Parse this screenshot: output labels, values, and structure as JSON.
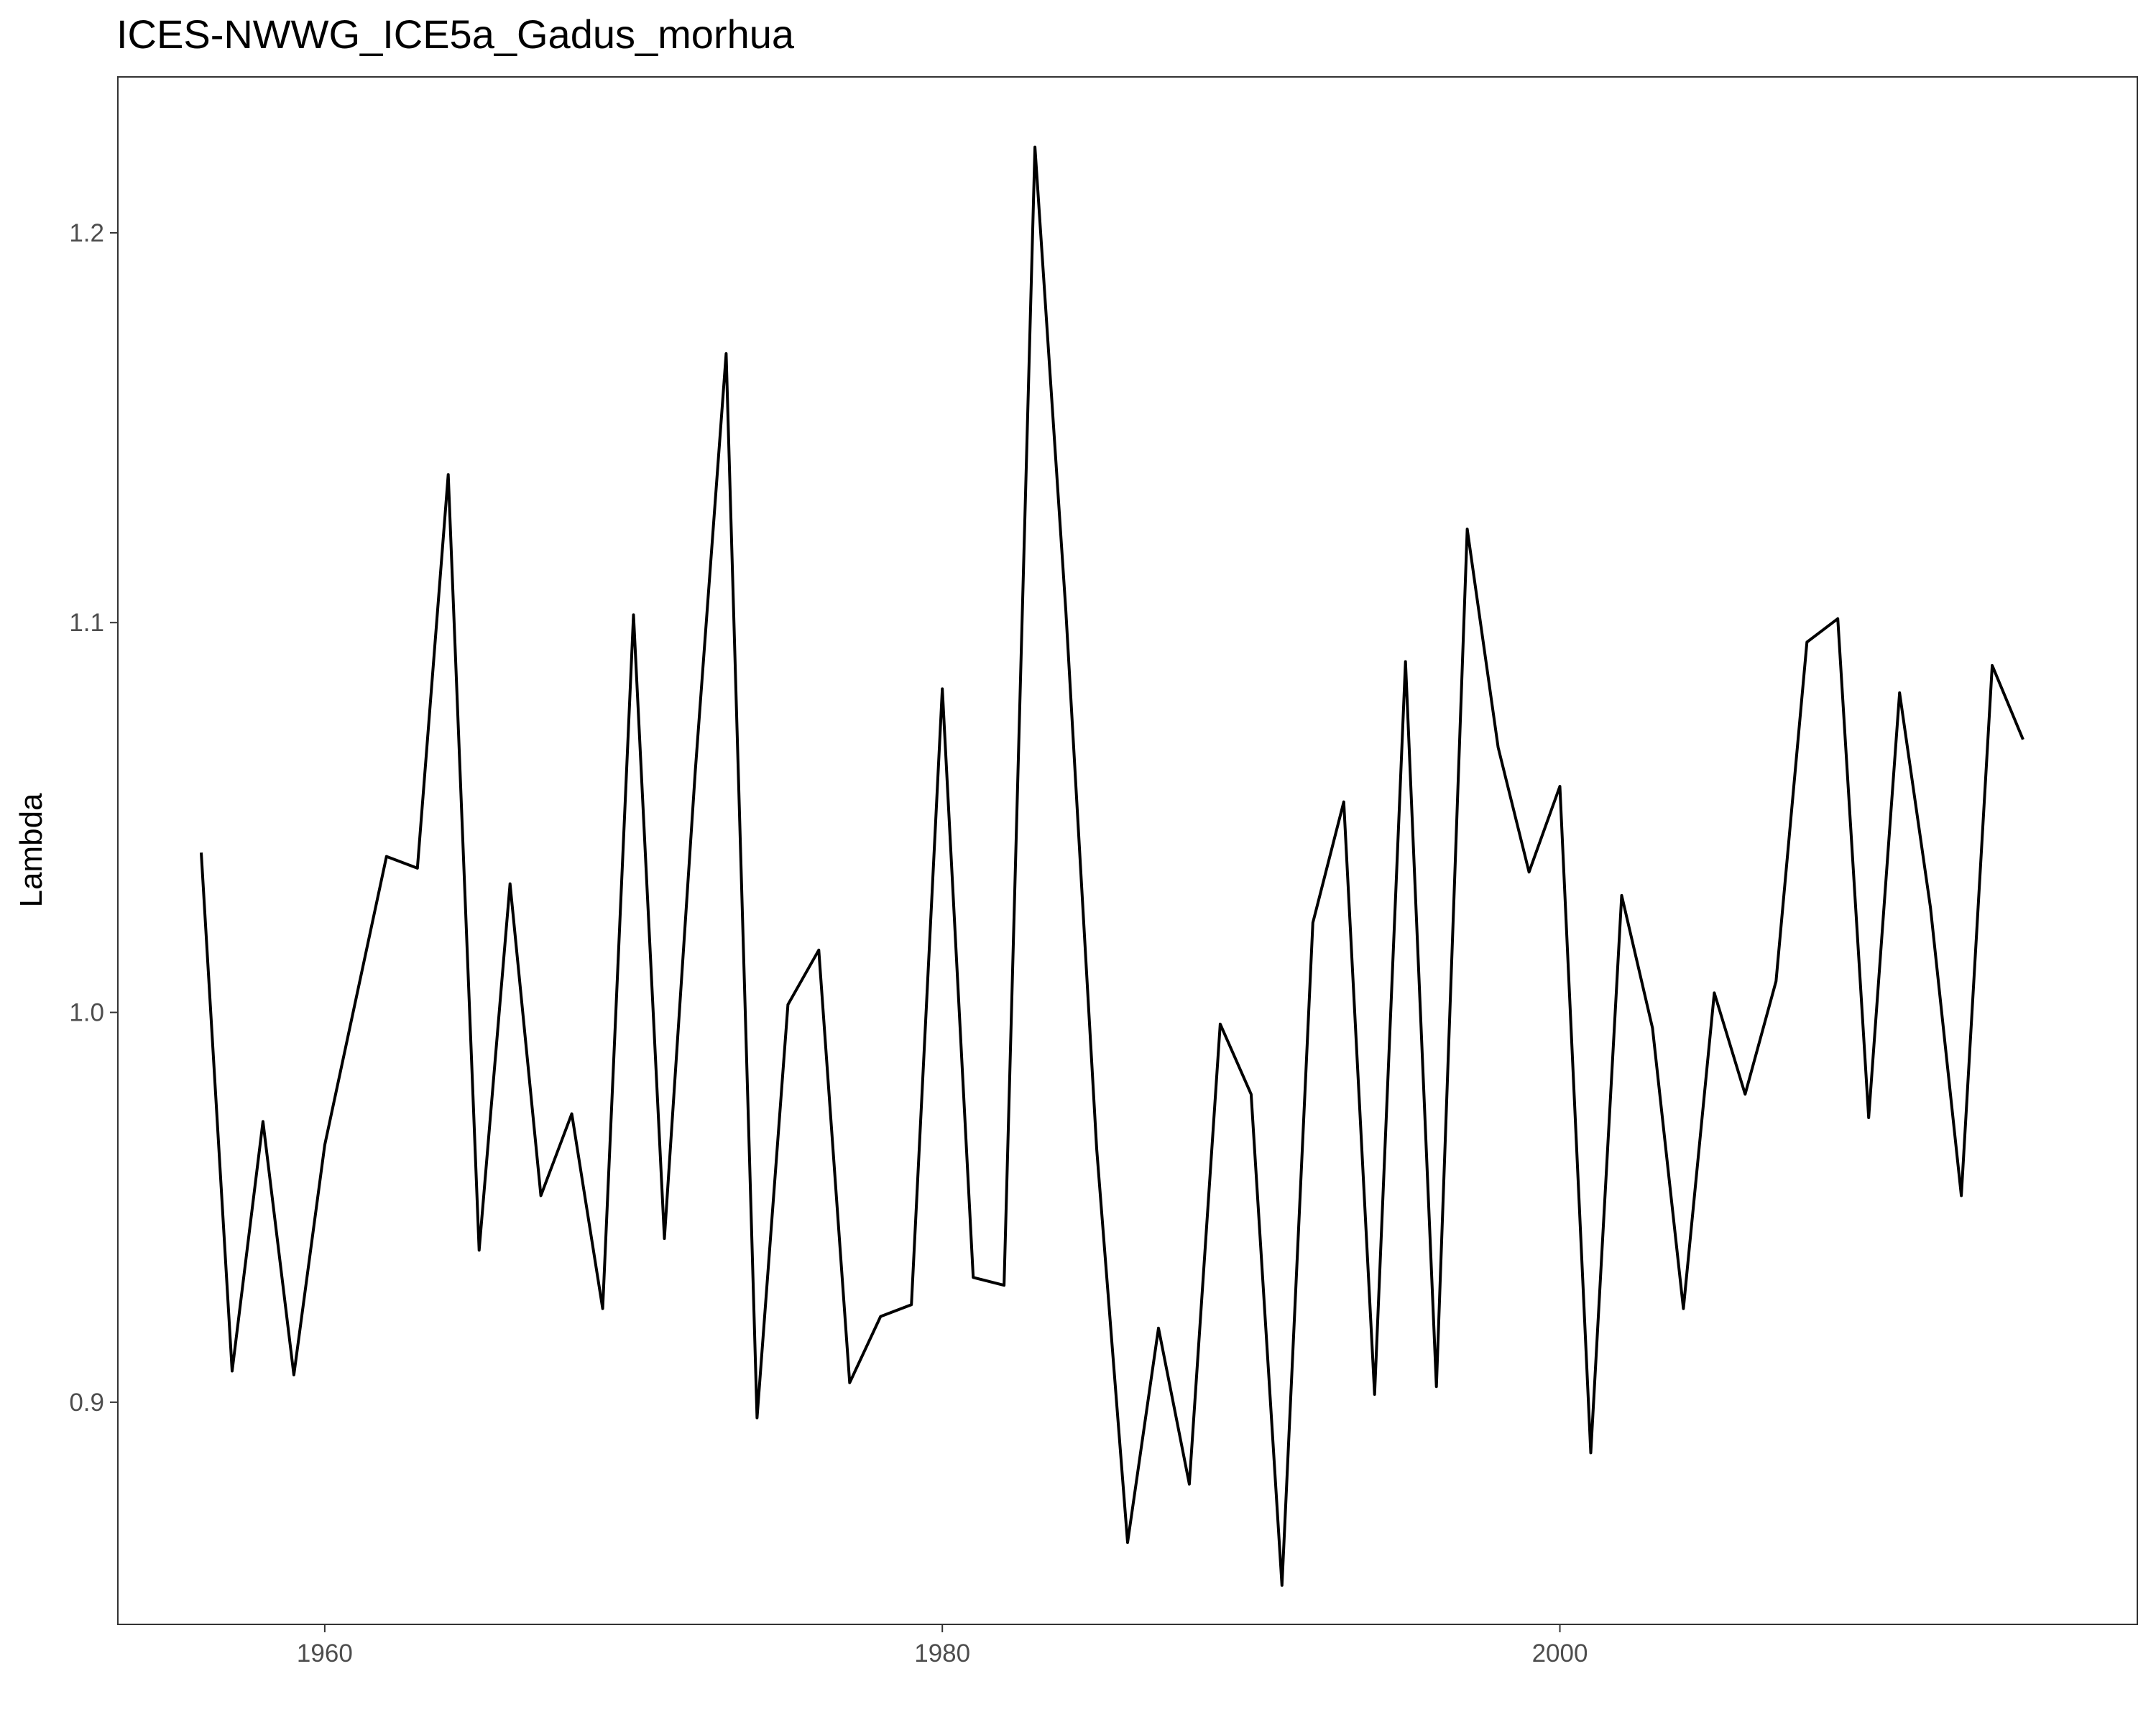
{
  "chart_data": {
    "type": "line",
    "title": "ICES-NWWG_ICE5a_Gadus_morhua",
    "xlabel": "",
    "ylabel": "Lambda",
    "xlim": [
      1953.3,
      2018.7
    ],
    "ylim": [
      0.843,
      1.24
    ],
    "x_ticks": [
      1960,
      1980,
      2000
    ],
    "y_ticks": [
      0.9,
      1.0,
      1.1,
      1.2
    ],
    "x_tick_labels": [
      "1960",
      "1980",
      "2000"
    ],
    "y_tick_labels": [
      "0.9",
      "1.0",
      "1.1",
      "1.2"
    ],
    "grid": false,
    "series": [
      {
        "color": "#000000",
        "x": [
          1956,
          1957,
          1958,
          1959,
          1960,
          1961,
          1962,
          1963,
          1964,
          1965,
          1966,
          1967,
          1968,
          1969,
          1970,
          1971,
          1972,
          1973,
          1974,
          1975,
          1976,
          1977,
          1978,
          1979,
          1980,
          1981,
          1982,
          1983,
          1984,
          1985,
          1986,
          1987,
          1988,
          1989,
          1990,
          1991,
          1992,
          1993,
          1994,
          1995,
          1996,
          1997,
          1998,
          1999,
          2000,
          2001,
          2002,
          2003,
          2004,
          2005,
          2006,
          2007,
          2008,
          2009,
          2010,
          2011,
          2012,
          2013,
          2014,
          2015
        ],
        "y": [
          1.041,
          0.908,
          0.972,
          0.907,
          0.966,
          1.003,
          1.04,
          1.037,
          1.138,
          0.939,
          1.033,
          0.953,
          0.974,
          0.924,
          1.102,
          0.942,
          1.062,
          1.169,
          0.896,
          1.002,
          1.016,
          0.905,
          0.922,
          0.925,
          1.083,
          0.932,
          0.93,
          1.222,
          1.103,
          0.965,
          0.864,
          0.919,
          0.879,
          0.997,
          0.979,
          0.853,
          1.023,
          1.054,
          0.902,
          1.09,
          0.904,
          1.124,
          1.068,
          1.036,
          1.058,
          0.887,
          1.03,
          0.996,
          0.924,
          1.005,
          0.979,
          1.008,
          1.095,
          1.101,
          0.973,
          1.082,
          1.027,
          0.953,
          1.089,
          1.07
        ]
      }
    ]
  }
}
